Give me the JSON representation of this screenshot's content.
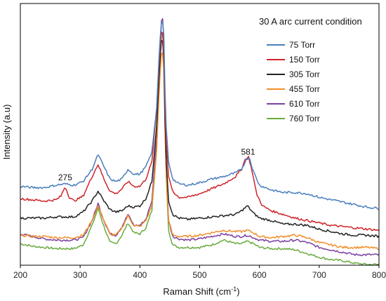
{
  "chart_data": {
    "type": "line",
    "title": "",
    "condition_label": "30 A arc current condition",
    "xlabel": "Raman Shift (cm",
    "xlabel_sup": "-1",
    "xlabel_tail": ")",
    "ylabel": "Intensity (a.u)",
    "xlim": [
      200,
      800
    ],
    "ylim": [
      0,
      100
    ],
    "xticks": [
      200,
      300,
      400,
      500,
      600,
      700,
      800
    ],
    "xtick_labels": [
      "200",
      "300",
      "400",
      "500",
      "600",
      "700",
      "800"
    ],
    "y_ticks_shown": false,
    "grid": false,
    "legend_position": "top-right",
    "annotations": [
      {
        "text": "275",
        "x": 275,
        "y": 32.5
      },
      {
        "text": "581",
        "x": 581,
        "y": 43
      }
    ],
    "series": [
      {
        "name": "75 Torr",
        "color": "#4a7ebb",
        "points": [
          [
            200,
            30
          ],
          [
            220,
            29.5
          ],
          [
            240,
            29.5
          ],
          [
            260,
            30.5
          ],
          [
            275,
            31
          ],
          [
            290,
            30.5
          ],
          [
            305,
            32
          ],
          [
            320,
            37
          ],
          [
            330,
            43
          ],
          [
            340,
            38
          ],
          [
            350,
            33
          ],
          [
            360,
            32
          ],
          [
            370,
            33
          ],
          [
            380,
            37
          ],
          [
            390,
            35
          ],
          [
            400,
            35
          ],
          [
            410,
            38
          ],
          [
            420,
            44
          ],
          [
            428,
            62
          ],
          [
            433,
            88
          ],
          [
            437,
            100
          ],
          [
            440,
            92
          ],
          [
            443,
            58
          ],
          [
            448,
            40
          ],
          [
            455,
            33
          ],
          [
            465,
            31
          ],
          [
            480,
            30.5
          ],
          [
            500,
            31.5
          ],
          [
            520,
            33
          ],
          [
            540,
            34
          ],
          [
            560,
            35.5
          ],
          [
            570,
            37
          ],
          [
            578,
            41
          ],
          [
            583,
            42
          ],
          [
            590,
            36
          ],
          [
            600,
            30.5
          ],
          [
            620,
            28.5
          ],
          [
            640,
            27.5
          ],
          [
            660,
            27.5
          ],
          [
            680,
            27
          ],
          [
            700,
            25.5
          ],
          [
            720,
            24.5
          ],
          [
            740,
            23.5
          ],
          [
            760,
            22.5
          ],
          [
            780,
            21.5
          ],
          [
            800,
            21
          ]
        ]
      },
      {
        "name": "150 Torr",
        "color": "#d0242a",
        "points": [
          [
            200,
            25
          ],
          [
            220,
            24.5
          ],
          [
            240,
            24
          ],
          [
            260,
            24.5
          ],
          [
            268,
            26
          ],
          [
            275,
            30
          ],
          [
            282,
            25.5
          ],
          [
            290,
            24
          ],
          [
            305,
            26
          ],
          [
            320,
            34
          ],
          [
            330,
            39
          ],
          [
            340,
            33
          ],
          [
            350,
            28
          ],
          [
            360,
            27
          ],
          [
            370,
            29
          ],
          [
            380,
            32
          ],
          [
            390,
            30
          ],
          [
            400,
            30
          ],
          [
            410,
            33
          ],
          [
            420,
            40
          ],
          [
            428,
            62
          ],
          [
            433,
            85
          ],
          [
            437,
            96
          ],
          [
            440,
            85
          ],
          [
            443,
            52
          ],
          [
            448,
            34
          ],
          [
            455,
            28
          ],
          [
            465,
            25.5
          ],
          [
            480,
            25.5
          ],
          [
            500,
            27
          ],
          [
            520,
            29
          ],
          [
            540,
            31
          ],
          [
            560,
            34
          ],
          [
            570,
            37
          ],
          [
            576,
            41
          ],
          [
            582,
            42
          ],
          [
            588,
            36
          ],
          [
            595,
            27
          ],
          [
            605,
            22
          ],
          [
            620,
            20
          ],
          [
            640,
            18.5
          ],
          [
            660,
            17
          ],
          [
            680,
            16
          ],
          [
            700,
            15
          ],
          [
            720,
            14
          ],
          [
            740,
            13.5
          ],
          [
            760,
            13
          ],
          [
            780,
            12.5
          ],
          [
            800,
            12
          ]
        ]
      },
      {
        "name": "305 Torr",
        "color": "#222222",
        "points": [
          [
            200,
            17
          ],
          [
            220,
            17
          ],
          [
            240,
            17
          ],
          [
            260,
            17.5
          ],
          [
            275,
            17.5
          ],
          [
            290,
            17.5
          ],
          [
            305,
            19.5
          ],
          [
            320,
            24
          ],
          [
            330,
            28
          ],
          [
            340,
            24
          ],
          [
            350,
            20.5
          ],
          [
            360,
            19.5
          ],
          [
            370,
            20
          ],
          [
            380,
            22
          ],
          [
            390,
            21.5
          ],
          [
            400,
            22
          ],
          [
            410,
            25
          ],
          [
            420,
            32
          ],
          [
            428,
            55
          ],
          [
            433,
            80
          ],
          [
            437,
            93
          ],
          [
            440,
            82
          ],
          [
            443,
            45
          ],
          [
            448,
            24
          ],
          [
            455,
            18.5
          ],
          [
            465,
            17
          ],
          [
            480,
            16.5
          ],
          [
            500,
            17
          ],
          [
            520,
            17.5
          ],
          [
            540,
            18
          ],
          [
            560,
            18.5
          ],
          [
            570,
            20
          ],
          [
            580,
            22
          ],
          [
            590,
            19
          ],
          [
            600,
            17
          ],
          [
            620,
            16
          ],
          [
            640,
            14.5
          ],
          [
            660,
            14.5
          ],
          [
            680,
            14
          ],
          [
            700,
            12.5
          ],
          [
            720,
            11.5
          ],
          [
            740,
            10.5
          ],
          [
            760,
            10
          ],
          [
            780,
            10
          ],
          [
            800,
            9.5
          ]
        ]
      },
      {
        "name": "455 Torr",
        "color": "#f28e2b",
        "points": [
          [
            200,
            10
          ],
          [
            220,
            9.5
          ],
          [
            240,
            9.5
          ],
          [
            260,
            9
          ],
          [
            275,
            9
          ],
          [
            290,
            9
          ],
          [
            305,
            10
          ],
          [
            320,
            16
          ],
          [
            330,
            22
          ],
          [
            340,
            16
          ],
          [
            350,
            10.5
          ],
          [
            360,
            10
          ],
          [
            370,
            13
          ],
          [
            380,
            18
          ],
          [
            390,
            14
          ],
          [
            400,
            13.5
          ],
          [
            410,
            16
          ],
          [
            420,
            22
          ],
          [
            428,
            45
          ],
          [
            433,
            73
          ],
          [
            437,
            88
          ],
          [
            440,
            78
          ],
          [
            443,
            40
          ],
          [
            448,
            16
          ],
          [
            455,
            10
          ],
          [
            465,
            9.5
          ],
          [
            480,
            9.5
          ],
          [
            500,
            10
          ],
          [
            520,
            11
          ],
          [
            540,
            12
          ],
          [
            560,
            11.5
          ],
          [
            570,
            11.5
          ],
          [
            580,
            12
          ],
          [
            590,
            11
          ],
          [
            600,
            9.5
          ],
          [
            620,
            9
          ],
          [
            640,
            9.5
          ],
          [
            660,
            10
          ],
          [
            680,
            9
          ],
          [
            700,
            7
          ],
          [
            720,
            6
          ],
          [
            740,
            5
          ],
          [
            760,
            5
          ],
          [
            780,
            5
          ],
          [
            800,
            4.5
          ]
        ]
      },
      {
        "name": "610 Torr",
        "color": "#7b3fa0",
        "points": [
          [
            200,
            10.5
          ],
          [
            220,
            9.5
          ],
          [
            240,
            8.5
          ],
          [
            260,
            8
          ],
          [
            275,
            8
          ],
          [
            290,
            8
          ],
          [
            305,
            9
          ],
          [
            320,
            16
          ],
          [
            330,
            23
          ],
          [
            340,
            16
          ],
          [
            350,
            10.5
          ],
          [
            360,
            10
          ],
          [
            370,
            13.5
          ],
          [
            380,
            18.5
          ],
          [
            390,
            14
          ],
          [
            400,
            14
          ],
          [
            410,
            16.5
          ],
          [
            420,
            24
          ],
          [
            428,
            50
          ],
          [
            433,
            82
          ],
          [
            437,
            103
          ],
          [
            440,
            90
          ],
          [
            443,
            45
          ],
          [
            448,
            16
          ],
          [
            455,
            9.5
          ],
          [
            465,
            8.5
          ],
          [
            480,
            8
          ],
          [
            500,
            8.5
          ],
          [
            520,
            9.5
          ],
          [
            540,
            10.5
          ],
          [
            560,
            9.5
          ],
          [
            570,
            9.5
          ],
          [
            580,
            10
          ],
          [
            590,
            9
          ],
          [
            600,
            8
          ],
          [
            620,
            7.5
          ],
          [
            640,
            7.5
          ],
          [
            660,
            8
          ],
          [
            680,
            7
          ],
          [
            700,
            5
          ],
          [
            720,
            4
          ],
          [
            740,
            3
          ],
          [
            760,
            2
          ],
          [
            780,
            2
          ],
          [
            800,
            2
          ]
        ]
      },
      {
        "name": "760 Torr",
        "color": "#6aab3f",
        "points": [
          [
            200,
            6.5
          ],
          [
            220,
            5.5
          ],
          [
            240,
            5
          ],
          [
            260,
            4.5
          ],
          [
            275,
            4.5
          ],
          [
            290,
            4.5
          ],
          [
            305,
            6
          ],
          [
            320,
            14
          ],
          [
            330,
            21
          ],
          [
            340,
            13.5
          ],
          [
            350,
            7
          ],
          [
            360,
            6.5
          ],
          [
            370,
            10
          ],
          [
            380,
            15
          ],
          [
            390,
            11
          ],
          [
            400,
            10.5
          ],
          [
            410,
            13
          ],
          [
            420,
            20
          ],
          [
            428,
            45
          ],
          [
            433,
            78
          ],
          [
            437,
            97
          ],
          [
            440,
            85
          ],
          [
            443,
            40
          ],
          [
            448,
            12
          ],
          [
            455,
            6
          ],
          [
            465,
            5
          ],
          [
            480,
            5
          ],
          [
            500,
            5
          ],
          [
            520,
            6
          ],
          [
            540,
            8
          ],
          [
            560,
            6.5
          ],
          [
            570,
            6.5
          ],
          [
            580,
            7.5
          ],
          [
            590,
            6.5
          ],
          [
            600,
            5
          ],
          [
            620,
            4.5
          ],
          [
            640,
            4.5
          ],
          [
            660,
            4
          ],
          [
            680,
            2.5
          ],
          [
            700,
            1
          ],
          [
            720,
            0
          ],
          [
            740,
            -0.5
          ],
          [
            760,
            -1.5
          ],
          [
            780,
            -2
          ],
          [
            800,
            -2
          ]
        ]
      }
    ]
  }
}
